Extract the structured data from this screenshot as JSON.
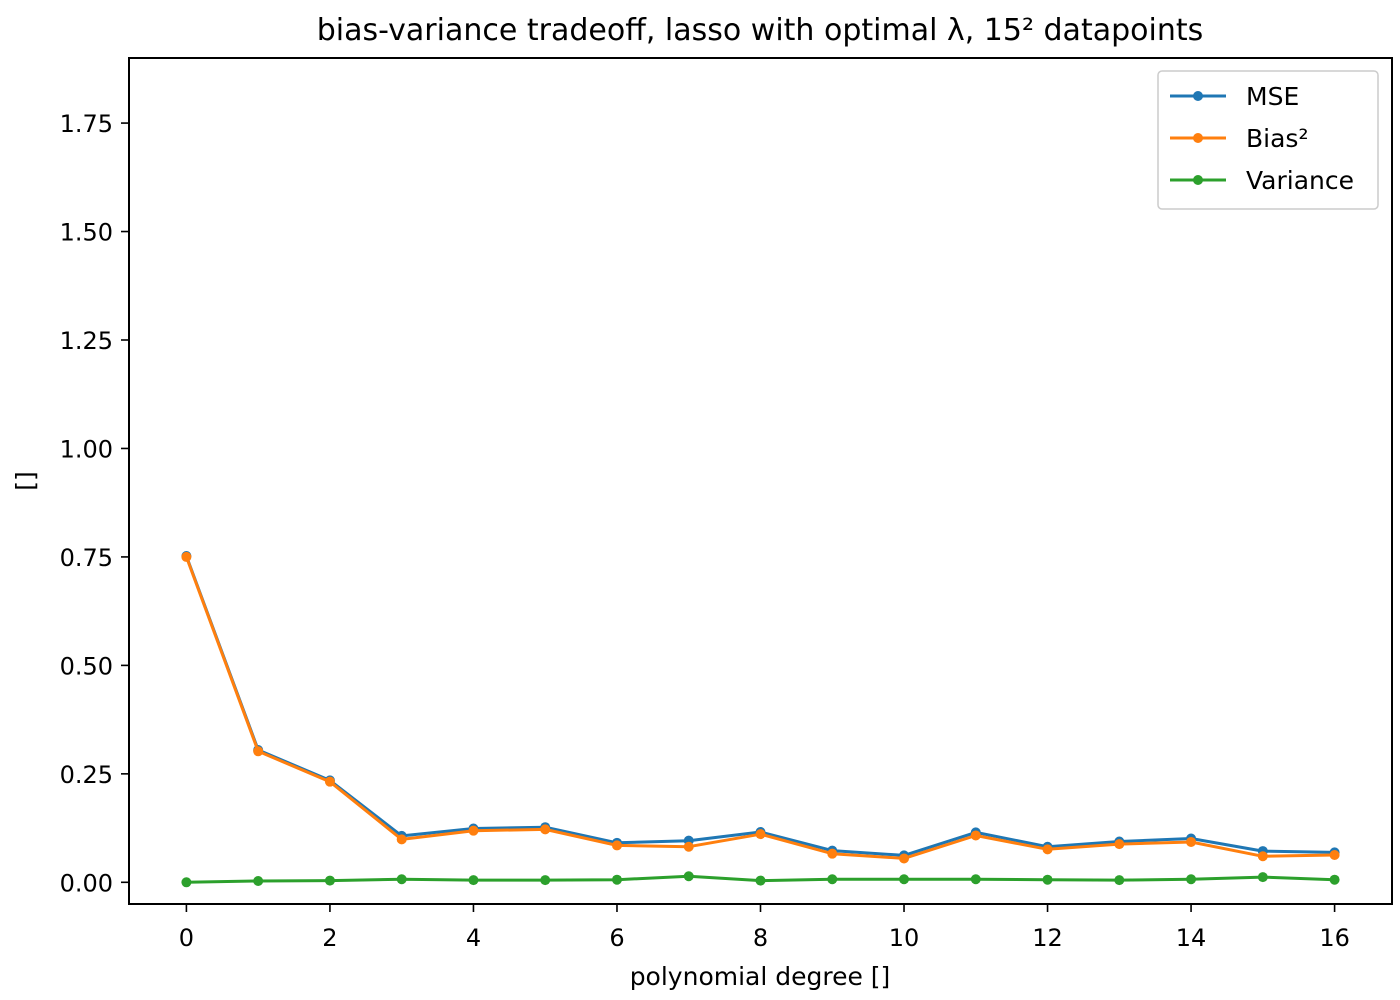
{
  "chart_data": {
    "type": "line",
    "title": "bias-variance tradeoff, lasso with optimal λ, 15² datapoints",
    "xlabel": "polynomial degree []",
    "ylabel": "[]",
    "xlim": [
      -0.8,
      16.8
    ],
    "ylim": [
      -0.05,
      1.9
    ],
    "xticks": [
      "0",
      "2",
      "4",
      "6",
      "8",
      "10",
      "12",
      "14",
      "16"
    ],
    "yticks": [
      "0.00",
      "0.25",
      "0.50",
      "0.75",
      "1.00",
      "1.25",
      "1.50",
      "1.75"
    ],
    "grid": false,
    "legend_position": "top-right",
    "x": [
      0,
      1,
      2,
      3,
      4,
      5,
      6,
      7,
      8,
      9,
      10,
      11,
      12,
      13,
      14,
      15,
      16
    ],
    "series": [
      {
        "name": "MSE",
        "color": "#1f77b4",
        "values": [
          0.752,
          0.305,
          0.235,
          0.107,
          0.124,
          0.127,
          0.091,
          0.096,
          0.116,
          0.073,
          0.062,
          0.115,
          0.082,
          0.094,
          0.101,
          0.072,
          0.069
        ]
      },
      {
        "name": "Bias²",
        "color": "#ff7f0e",
        "values": [
          0.75,
          0.302,
          0.232,
          0.099,
          0.119,
          0.122,
          0.085,
          0.082,
          0.111,
          0.066,
          0.055,
          0.108,
          0.076,
          0.088,
          0.093,
          0.06,
          0.063
        ]
      },
      {
        "name": "Variance",
        "color": "#2ca02c",
        "values": [
          0.0,
          0.003,
          0.004,
          0.007,
          0.005,
          0.005,
          0.006,
          0.014,
          0.004,
          0.007,
          0.007,
          0.007,
          0.006,
          0.005,
          0.007,
          0.012,
          0.006
        ]
      }
    ]
  }
}
